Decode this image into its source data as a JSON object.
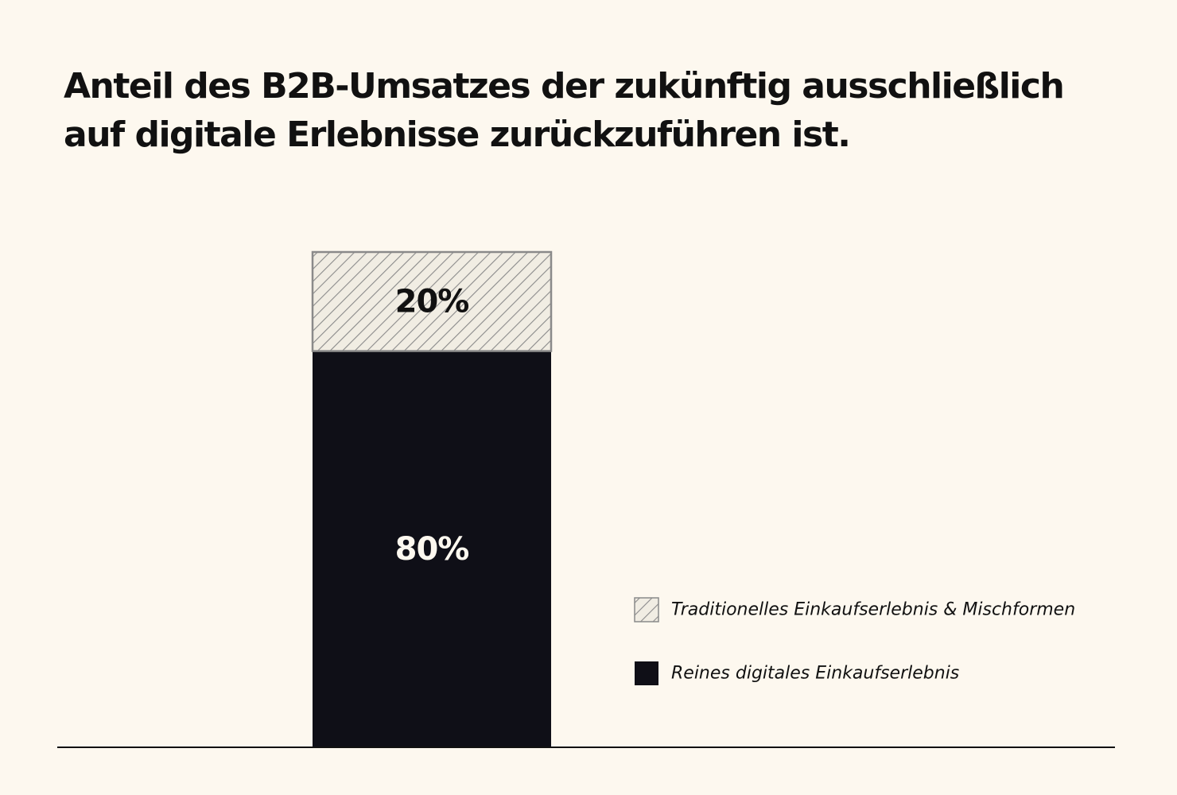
{
  "title_lines": [
    "Anteil des B2B-Umsatzes der zukünftig ausschließlich",
    "auf digitale Erlebnisse zurückzuführen ist."
  ],
  "colors": {
    "background": "#fdf8ef",
    "solid": "#0f0f17",
    "hatch_fill": "#f1ede3",
    "hatch_line": "#8a8a8a",
    "text": "#111111",
    "label_on_dark": "#fdf8ef"
  },
  "chart_data": {
    "type": "bar",
    "stacked": true,
    "categories": [
      ""
    ],
    "ylim": [
      0,
      100
    ],
    "series": [
      {
        "name": "Reines digitales Einkaufserlebnis",
        "values": [
          80
        ],
        "label": "80%",
        "pattern": "solid"
      },
      {
        "name": "Traditionelles Einkaufserlebnis & Mischformen",
        "values": [
          20
        ],
        "label": "20%",
        "pattern": "hatched"
      }
    ],
    "legend_order": [
      1,
      0
    ],
    "legend_position": "right",
    "grid": false
  }
}
